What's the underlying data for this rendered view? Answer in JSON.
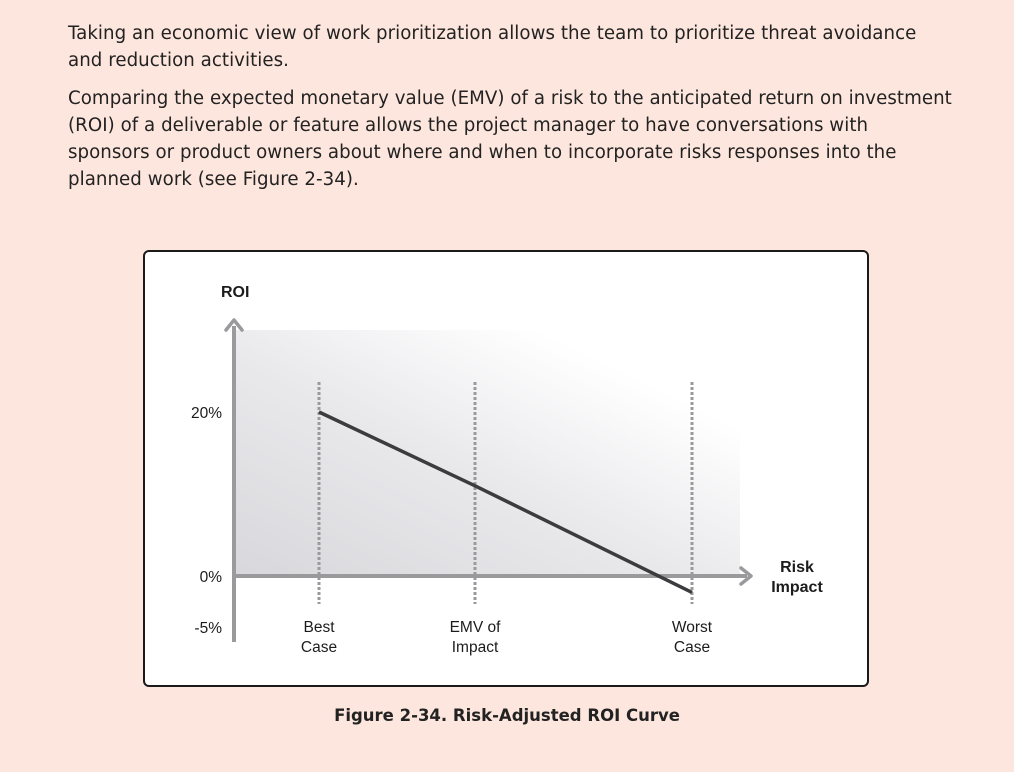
{
  "text": {
    "paragraph1": "Taking an economic view of work prioritization allows the team to prioritize threat avoidance and reduction activities.",
    "paragraph2": "Comparing the expected monetary value (EMV) of a risk to the anticipated return on investment (ROI) of a deliverable or feature allows the project manager to have conversations with sponsors or product owners about where and when to incorporate risks responses into the planned work (see Figure 2-34).",
    "caption": "Figure 2-34. Risk-Adjusted ROI Curve"
  },
  "chart_data": {
    "type": "line",
    "title": "",
    "ylabel": "ROI",
    "xlabel": [
      "Risk",
      "Impact"
    ],
    "y_ticks": [
      {
        "value": 20,
        "label": "20%"
      },
      {
        "value": 0,
        "label": "0%"
      },
      {
        "value": -5,
        "label": "-5%"
      }
    ],
    "x_categories": [
      {
        "key": "best",
        "label": [
          "Best",
          "Case"
        ]
      },
      {
        "key": "emv",
        "label": [
          "EMV of",
          "Impact"
        ]
      },
      {
        "key": "worst",
        "label": [
          "Worst",
          "Case"
        ]
      }
    ],
    "series": [
      {
        "points": [
          {
            "x": "best",
            "y": 20
          },
          {
            "x": "emv",
            "y": 11
          },
          {
            "x": "worst",
            "y": -2
          }
        ]
      }
    ],
    "ylim": [
      -8,
      30
    ],
    "colors": {
      "line": "#3c3c3e",
      "axis": "#9a9a9c",
      "guide": "#9a9a9c",
      "shade": "#d6d6da"
    }
  }
}
